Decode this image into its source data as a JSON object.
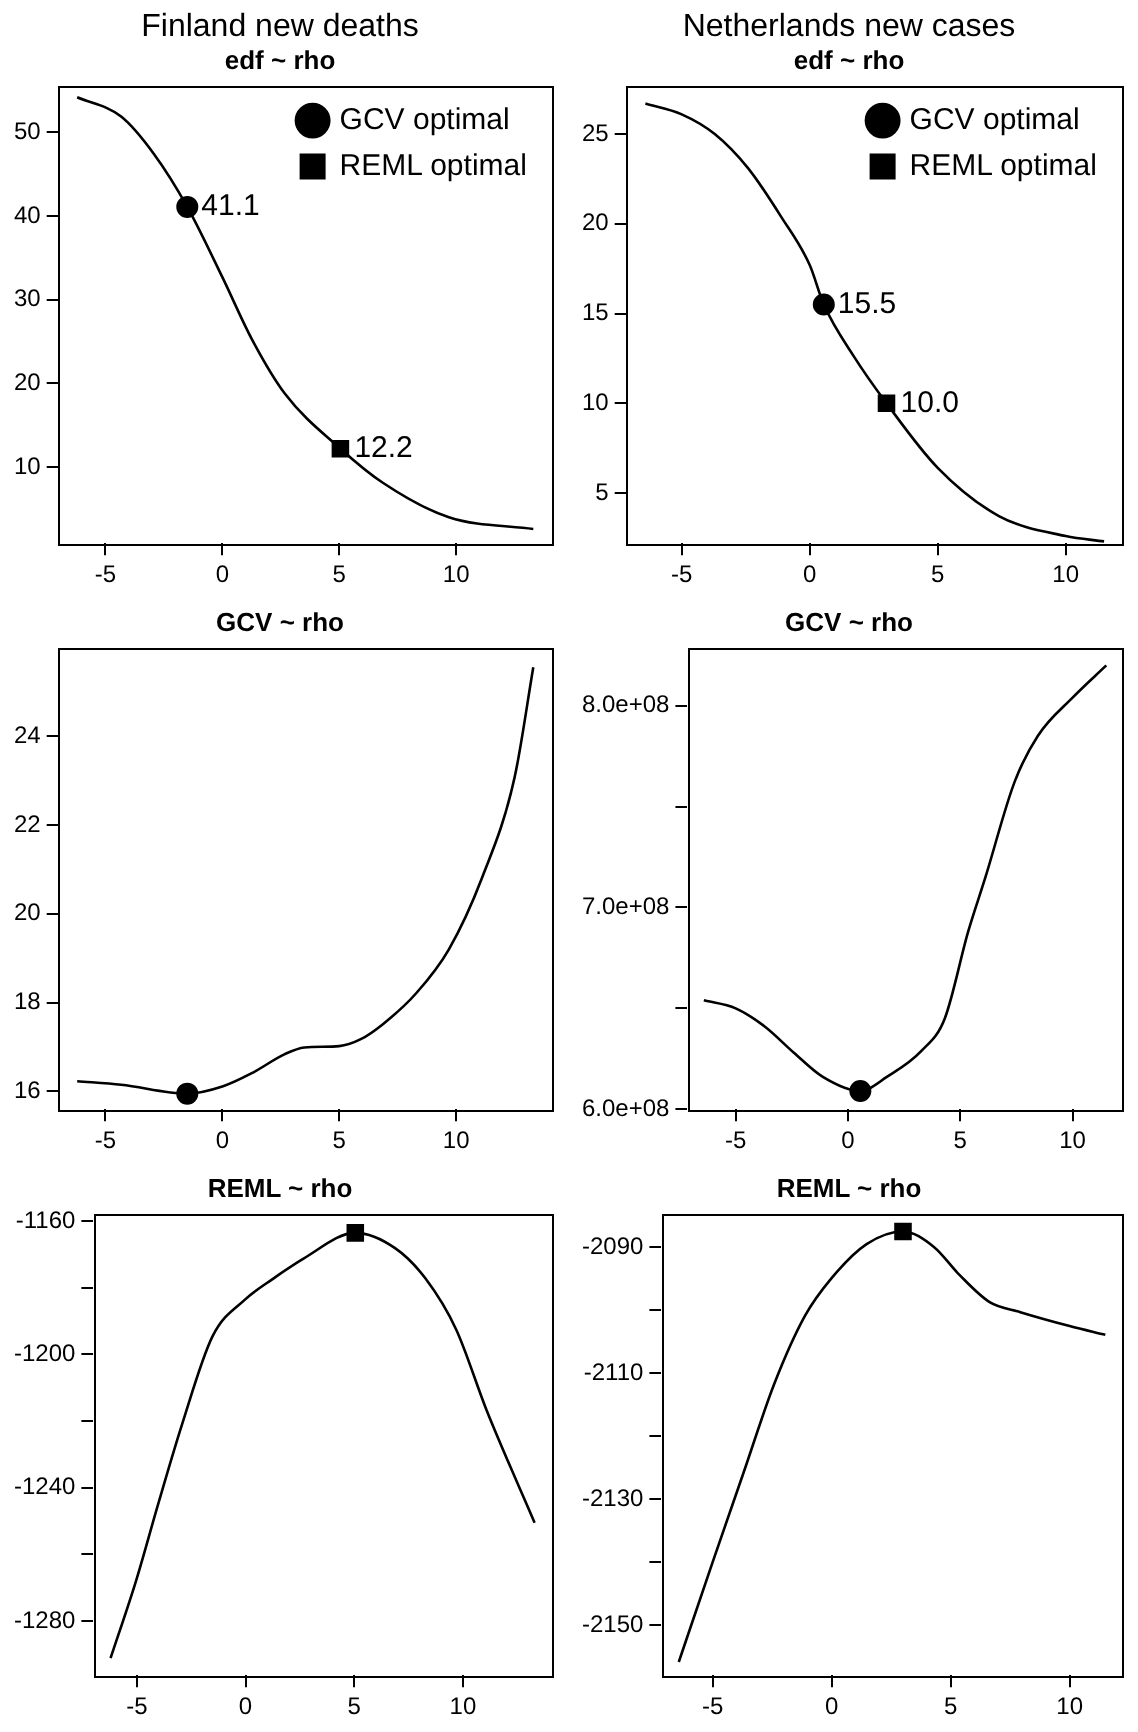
{
  "chart_data": [
    {
      "type": "line",
      "title": "Finland new deaths",
      "subtitle": "edf ~ rho",
      "xlim": [
        -7,
        14.1
      ],
      "xticks": [
        -5,
        0,
        5,
        10
      ],
      "ylim": [
        0.9,
        55.6
      ],
      "yticks": [
        10,
        20,
        30,
        40,
        50
      ],
      "legend": "top right",
      "series": [
        {
          "type": "line",
          "color": "#000000",
          "marker": "none",
          "x": [
            -6.21,
            -4.33,
            -2.92,
            -1.5,
            0,
            1.26,
            2.67,
            5.05,
            6.88,
            9.69,
            13.3
          ],
          "values": [
            54.2,
            51.9,
            47.4,
            41.1,
            32.7,
            25.3,
            18.8,
            12.2,
            8.1,
            4.0,
            2.6
          ]
        },
        {
          "type": "scatter",
          "name": "GCV optimal",
          "color": "#000000",
          "marker": "circle",
          "x": [
            -1.5
          ],
          "values": [
            41.1
          ],
          "value_labels": [
            "41.1"
          ]
        },
        {
          "type": "scatter",
          "name": "REML optimal",
          "color": "#000000",
          "marker": "square",
          "x": [
            5.05
          ],
          "values": [
            12.2
          ],
          "value_labels": [
            "12.2"
          ]
        }
      ]
    },
    {
      "type": "line",
      "title": "Netherlands new cases",
      "subtitle": "edf ~ rho",
      "xlim": [
        -7.15,
        12.2
      ],
      "xticks": [
        -5,
        0,
        5,
        10
      ],
      "ylim": [
        2.2,
        27.7
      ],
      "yticks": [
        5,
        10,
        15,
        20,
        25
      ],
      "legend": "top right",
      "series": [
        {
          "type": "line",
          "color": "#000000",
          "marker": "none",
          "x": [
            -6.42,
            -5,
            -3.71,
            -2.41,
            -1.12,
            0,
            0.55,
            1.73,
            3.0,
            5,
            7.41,
            10,
            11.5
          ],
          "values": [
            26.7,
            26.1,
            25.0,
            23.1,
            20.4,
            17.7,
            15.5,
            12.6,
            10.0,
            6.4,
            3.7,
            2.6,
            2.3
          ]
        },
        {
          "type": "scatter",
          "name": "GCV optimal",
          "color": "#000000",
          "marker": "circle",
          "x": [
            0.55
          ],
          "values": [
            15.5
          ],
          "value_labels": [
            "15.5"
          ]
        },
        {
          "type": "scatter",
          "name": "REML optimal",
          "color": "#000000",
          "marker": "square",
          "x": [
            3.0
          ],
          "values": [
            10.0
          ],
          "value_labels": [
            "10.0"
          ]
        }
      ]
    },
    {
      "type": "line",
      "title": "GCV ~ rho",
      "xlim": [
        -7,
        14.1
      ],
      "xticks": [
        -5,
        0,
        5,
        10
      ],
      "ylim": [
        15.6,
        26.0
      ],
      "yticks": [
        16,
        18,
        20,
        22,
        24
      ],
      "series": [
        {
          "type": "line",
          "color": "#000000",
          "marker": "none",
          "x": [
            -6.21,
            -4.33,
            -1.5,
            0,
            1.26,
            2.67,
            3.51,
            5,
            5.9,
            6.88,
            8.29,
            9.69,
            11.1,
            12.5,
            13.3
          ],
          "values": [
            16.23,
            16.15,
            15.95,
            16.11,
            16.41,
            16.84,
            16.99,
            17.02,
            17.17,
            17.52,
            18.21,
            19.2,
            20.8,
            23.07,
            25.55
          ]
        },
        {
          "type": "scatter",
          "color": "#000000",
          "marker": "circle",
          "x": [
            -1.5
          ],
          "values": [
            15.95
          ]
        }
      ]
    },
    {
      "type": "line",
      "title": "GCV ~ rho",
      "xlim": [
        -7.15,
        12.2
      ],
      "xticks": [
        -5,
        0,
        5,
        10
      ],
      "ylim": [
        600000000,
        829000000
      ],
      "yticks": [
        {
          "value": 600000000,
          "label": "6.0e+08"
        },
        {
          "value": 650000000,
          "label": null
        },
        {
          "value": 700000000,
          "label": "7.0e+08"
        },
        {
          "value": 750000000,
          "label": null
        },
        {
          "value": 800000000,
          "label": "8.0e+08"
        }
      ],
      "series": [
        {
          "type": "line",
          "color": "#000000",
          "marker": "none",
          "x": [
            -6.42,
            -5,
            -3.71,
            -2.41,
            -1.12,
            0.55,
            1.73,
            3.28,
            4.31,
            5.35,
            6.12,
            7.41,
            8.45,
            10,
            11.5
          ],
          "values": [
            654000000,
            650000000,
            641000000,
            628000000,
            616000000,
            609000000,
            616000000,
            629000000,
            645000000,
            688000000,
            715000000,
            762000000,
            785000000,
            804000000,
            820000000
          ]
        },
        {
          "type": "scatter",
          "color": "#000000",
          "marker": "circle",
          "x": [
            0.55
          ],
          "values": [
            609000000
          ]
        }
      ]
    },
    {
      "type": "line",
      "title": "REML ~ rho",
      "xlim": [
        -7,
        14.1
      ],
      "xticks": [
        -5,
        0,
        5,
        10
      ],
      "ylim": [
        -1296.3,
        -1157.6
      ],
      "yticks": [
        -1160,
        {
          "value": -1180,
          "label": null
        },
        -1200,
        {
          "value": -1220,
          "label": null
        },
        -1240,
        {
          "value": -1260,
          "label": null
        },
        -1280
      ],
      "series": [
        {
          "type": "line",
          "color": "#000000",
          "marker": "none",
          "x": [
            -6.21,
            -5.03,
            -4.04,
            -2.92,
            -1.52,
            0,
            1.26,
            2.67,
            5.05,
            6.88,
            8.29,
            9.69,
            11.1,
            13.3
          ],
          "values": [
            -1291.2,
            -1267.8,
            -1245.4,
            -1221,
            -1194.6,
            -1183.4,
            -1177.3,
            -1171.2,
            -1163.5,
            -1168.1,
            -1177.3,
            -1192.5,
            -1216.9,
            -1250.5
          ]
        },
        {
          "type": "scatter",
          "color": "#000000",
          "marker": "square",
          "x": [
            5.05
          ],
          "values": [
            -1163.5
          ]
        }
      ]
    },
    {
      "type": "line",
      "title": "REML ~ rho",
      "xlim": [
        -7.15,
        12.2
      ],
      "xticks": [
        -5,
        0,
        5,
        10
      ],
      "ylim": [
        -2157.9,
        -2084.6
      ],
      "yticks": [
        -2090,
        {
          "value": -2100,
          "label": null
        },
        -2110,
        {
          "value": -2120,
          "label": null
        },
        -2130,
        {
          "value": -2140,
          "label": null
        },
        -2150
      ],
      "series": [
        {
          "type": "line",
          "color": "#000000",
          "marker": "none",
          "x": [
            -6.42,
            -5,
            -3.71,
            -2.41,
            -1.12,
            0,
            1.47,
            3.0,
            4.31,
            5.35,
            6.64,
            7.93,
            10,
            11.5
          ],
          "values": [
            -2155.8,
            -2140.0,
            -2125.9,
            -2111.7,
            -2100.9,
            -2094.9,
            -2089.5,
            -2087.5,
            -2090,
            -2094.3,
            -2098.7,
            -2100.3,
            -2102.5,
            -2103.9
          ]
        },
        {
          "type": "scatter",
          "color": "#000000",
          "marker": "square",
          "x": [
            3.0
          ],
          "values": [
            -2087.5
          ]
        }
      ]
    }
  ]
}
